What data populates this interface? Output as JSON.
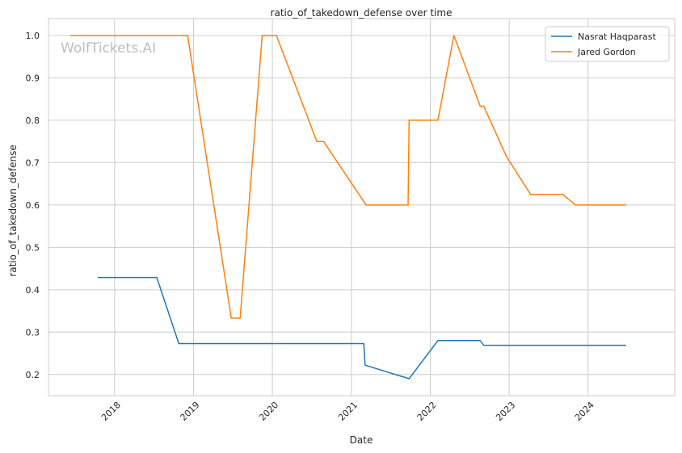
{
  "chart_data": {
    "type": "line",
    "title": "ratio_of_takedown_defense over time",
    "xlabel": "Date",
    "ylabel": "ratio_of_takedown_defense",
    "watermark": "WolfTickets.AI",
    "x_ticks": [
      "2018",
      "2019",
      "2020",
      "2021",
      "2022",
      "2023",
      "2024"
    ],
    "y_ticks": [
      "0.2",
      "0.3",
      "0.4",
      "0.5",
      "0.6",
      "0.7",
      "0.8",
      "0.9",
      "1.0"
    ],
    "xlim": [
      "2017-03-01",
      "2025-02-05"
    ],
    "ylim": [
      0.15,
      1.04
    ],
    "grid": true,
    "legend_position": "top-right",
    "series": [
      {
        "name": "Nasrat Haqparast",
        "color": "#1f77b4",
        "points": [
          [
            "2017-10-15",
            0.429
          ],
          [
            "2018-07-15",
            0.429
          ],
          [
            "2018-10-25",
            0.273
          ],
          [
            "2021-02-27",
            0.273
          ],
          [
            "2021-03-05",
            0.222
          ],
          [
            "2021-09-25",
            0.19
          ],
          [
            "2022-02-05",
            0.28
          ],
          [
            "2022-08-20",
            0.28
          ],
          [
            "2022-09-05",
            0.269
          ],
          [
            "2024-06-25",
            0.269
          ]
        ]
      },
      {
        "name": "Jared Gordon",
        "color": "#ff7f0e",
        "points": [
          [
            "2017-06-10",
            1.0
          ],
          [
            "2018-12-05",
            1.0
          ],
          [
            "2019-06-25",
            0.333
          ],
          [
            "2019-08-05",
            0.333
          ],
          [
            "2019-11-15",
            1.0
          ],
          [
            "2020-01-20",
            1.0
          ],
          [
            "2020-07-25",
            0.75
          ],
          [
            "2020-08-25",
            0.75
          ],
          [
            "2021-03-10",
            0.6
          ],
          [
            "2021-09-20",
            0.6
          ],
          [
            "2021-09-25",
            0.8
          ],
          [
            "2022-02-05",
            0.8
          ],
          [
            "2022-04-20",
            1.0
          ],
          [
            "2022-08-20",
            0.833
          ],
          [
            "2022-09-05",
            0.833
          ],
          [
            "2022-12-20",
            0.714
          ],
          [
            "2023-04-10",
            0.625
          ],
          [
            "2023-09-05",
            0.625
          ],
          [
            "2023-11-05",
            0.6
          ],
          [
            "2024-06-25",
            0.6
          ]
        ]
      }
    ]
  }
}
